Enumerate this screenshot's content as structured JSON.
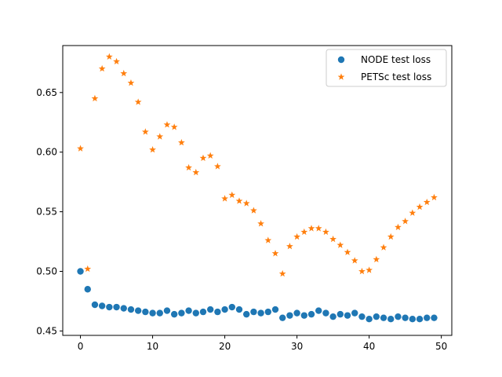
{
  "chart_data": {
    "type": "scatter",
    "title": "",
    "xlabel": "",
    "ylabel": "",
    "xlim": [
      -2.45,
      51.45
    ],
    "ylim": [
      0.4463,
      0.6894
    ],
    "x_ticks": [
      0,
      10,
      20,
      30,
      40,
      50
    ],
    "y_ticks": [
      0.45,
      0.5,
      0.55,
      0.6,
      0.65
    ],
    "x_tick_labels": [
      "0",
      "10",
      "20",
      "30",
      "40",
      "50"
    ],
    "y_tick_labels": [
      "0.45",
      "0.50",
      "0.55",
      "0.60",
      "0.65"
    ],
    "grid": false,
    "legend_position": "top-right",
    "series": [
      {
        "name": "NODE test loss",
        "marker": "circle",
        "color": "#1f77b4",
        "x": [
          0,
          1,
          2,
          3,
          4,
          5,
          6,
          7,
          8,
          9,
          10,
          11,
          12,
          13,
          14,
          15,
          16,
          17,
          18,
          19,
          20,
          21,
          22,
          23,
          24,
          25,
          26,
          27,
          28,
          29,
          30,
          31,
          32,
          33,
          34,
          35,
          36,
          37,
          38,
          39,
          40,
          41,
          42,
          43,
          44,
          45,
          46,
          47,
          48,
          49
        ],
        "y": [
          0.5,
          0.485,
          0.472,
          0.471,
          0.47,
          0.47,
          0.469,
          0.468,
          0.467,
          0.466,
          0.465,
          0.465,
          0.467,
          0.464,
          0.465,
          0.467,
          0.465,
          0.466,
          0.468,
          0.466,
          0.468,
          0.47,
          0.468,
          0.464,
          0.466,
          0.465,
          0.466,
          0.468,
          0.461,
          0.463,
          0.465,
          0.463,
          0.464,
          0.467,
          0.465,
          0.462,
          0.464,
          0.463,
          0.465,
          0.462,
          0.46,
          0.462,
          0.461,
          0.46,
          0.462,
          0.461,
          0.46,
          0.46,
          0.461,
          0.461
        ]
      },
      {
        "name": "PETSc test loss",
        "marker": "star",
        "color": "#ff7f0e",
        "x": [
          0,
          1,
          2,
          3,
          4,
          5,
          6,
          7,
          8,
          9,
          10,
          11,
          12,
          13,
          14,
          15,
          16,
          17,
          18,
          19,
          20,
          21,
          22,
          23,
          24,
          25,
          26,
          27,
          28,
          29,
          30,
          31,
          32,
          33,
          34,
          35,
          36,
          37,
          38,
          39,
          40,
          41,
          42,
          43,
          44,
          45,
          46,
          47,
          48,
          49
        ],
        "y": [
          0.603,
          0.502,
          0.645,
          0.67,
          0.68,
          0.676,
          0.666,
          0.658,
          0.642,
          0.617,
          0.602,
          0.613,
          0.623,
          0.621,
          0.608,
          0.587,
          0.583,
          0.595,
          0.597,
          0.588,
          0.561,
          0.564,
          0.559,
          0.557,
          0.551,
          0.54,
          0.526,
          0.515,
          0.498,
          0.521,
          0.529,
          0.533,
          0.536,
          0.536,
          0.533,
          0.527,
          0.522,
          0.516,
          0.509,
          0.5,
          0.501,
          0.51,
          0.52,
          0.529,
          0.537,
          0.542,
          0.549,
          0.554,
          0.558,
          0.562
        ]
      }
    ]
  }
}
